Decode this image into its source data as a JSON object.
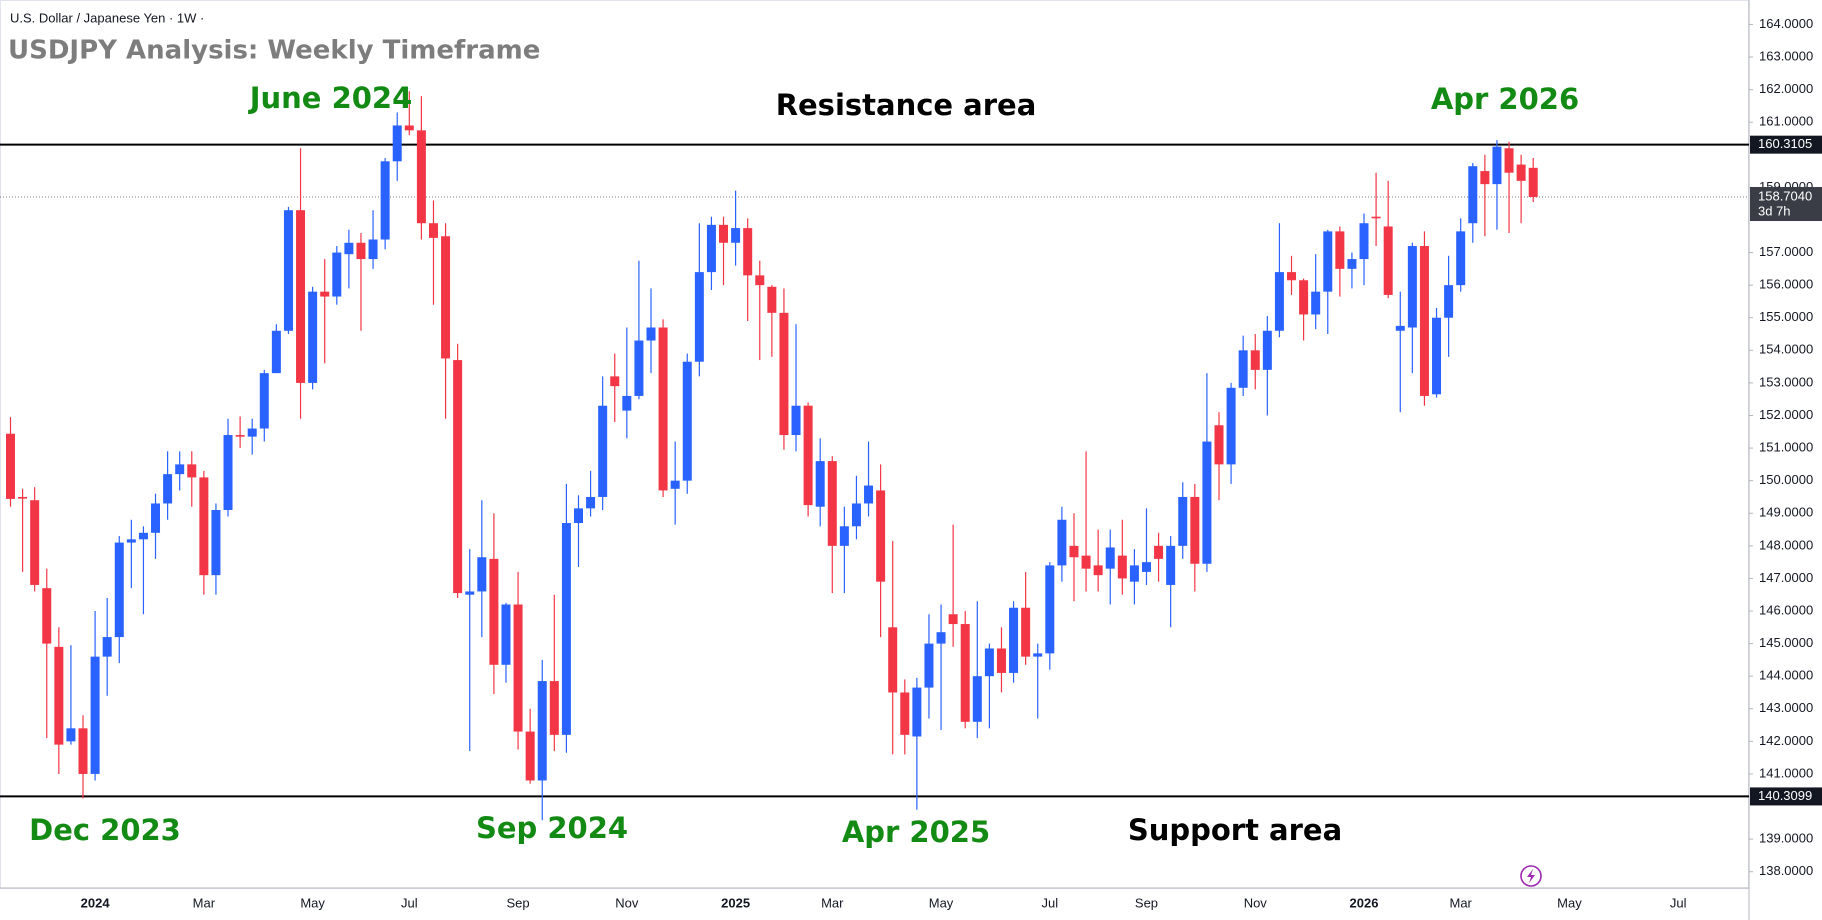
{
  "chart_data": {
    "type": "candlestick",
    "symbol": "U.S. Dollar / Japanese Yen · 1W ·",
    "title": "USDJPY Analysis: Weekly Timeframe",
    "up_color": "#2962ff",
    "down_color": "#f23645",
    "categories": [
      null,
      null,
      null,
      null,
      null,
      null,
      null,
      "2024",
      null,
      null,
      null,
      null,
      null,
      null,
      null,
      null,
      "Mar",
      null,
      null,
      null,
      null,
      null,
      null,
      null,
      null,
      "May",
      null,
      null,
      null,
      null,
      null,
      null,
      null,
      "Jul",
      null,
      null,
      null,
      null,
      null,
      null,
      null,
      null,
      "Sep",
      null,
      null,
      null,
      null,
      null,
      null,
      null,
      null,
      "Nov",
      null,
      null,
      null,
      null,
      null,
      null,
      null,
      null,
      "2025",
      null,
      null,
      null,
      null,
      null,
      null,
      null,
      "Mar",
      null,
      null,
      null,
      null,
      null,
      null,
      null,
      null,
      "May",
      null,
      null,
      null,
      null,
      null,
      null,
      null,
      null,
      "Jul",
      null,
      null,
      null,
      null,
      null,
      null,
      null,
      "Sep",
      null,
      null,
      null,
      null,
      null,
      null,
      null,
      null,
      "Nov",
      null,
      null,
      null,
      null,
      null,
      null,
      null,
      null,
      "2026",
      null,
      null,
      null,
      null,
      null,
      null,
      null,
      "Mar",
      null,
      null,
      null,
      null,
      null,
      null,
      null,
      null,
      "May",
      null,
      null,
      null,
      null,
      null,
      null,
      null,
      null,
      "Jul",
      null,
      null,
      null,
      null,
      null
    ],
    "open": [
      151.44,
      149.5,
      149.4,
      146.7,
      144.9,
      142.0,
      142.4,
      141.0,
      144.6,
      145.2,
      148.1,
      148.2,
      148.4,
      149.3,
      150.2,
      150.5,
      150.1,
      147.1,
      149.1,
      151.4,
      151.35,
      151.6,
      153.3,
      154.6,
      158.3,
      153.0,
      155.8,
      155.65,
      156.95,
      157.3,
      156.8,
      157.4,
      159.8,
      160.9,
      160.75,
      157.9,
      157.5,
      153.7,
      146.5,
      146.6,
      147.6,
      144.35,
      146.2,
      142.3,
      140.8,
      143.85,
      142.2,
      148.7,
      149.15,
      149.5,
      153.2,
      152.15,
      152.6,
      154.3,
      154.7,
      149.75,
      150.0,
      153.65,
      156.4,
      157.85,
      157.3,
      157.75,
      156.3,
      155.95,
      155.15,
      151.4,
      152.3,
      149.2,
      150.6,
      148.0,
      148.6,
      149.3,
      149.7,
      145.5,
      143.5,
      142.15,
      143.65,
      145.0,
      145.9,
      145.6,
      142.6,
      144.0,
      144.85,
      144.1,
      146.1,
      144.6,
      144.7,
      147.4,
      148.0,
      147.7,
      147.4,
      147.3,
      147.7,
      146.9,
      147.2,
      148.0,
      146.8,
      148.0,
      149.5,
      147.45,
      151.7,
      150.5,
      152.85,
      154.0,
      153.4,
      154.6,
      156.4,
      156.15,
      155.1,
      155.8,
      157.65,
      156.5,
      156.8,
      158.1,
      157.8,
      154.6,
      154.7,
      157.2,
      152.65,
      155.0,
      156.0,
      157.9,
      159.5,
      159.1,
      160.2,
      159.7,
      159.6,
      null,
      null,
      null,
      null,
      null,
      null,
      null,
      null,
      null,
      null,
      null,
      null,
      null,
      null,
      null,
      null,
      null
    ],
    "high": [
      151.95,
      149.75,
      149.8,
      147.3,
      145.5,
      144.95,
      142.8,
      146.0,
      146.4,
      148.3,
      148.8,
      148.6,
      149.6,
      150.9,
      150.9,
      150.9,
      150.3,
      149.3,
      151.9,
      151.97,
      151.9,
      153.4,
      154.8,
      158.4,
      160.2,
      155.95,
      156.8,
      157.2,
      157.7,
      157.6,
      158.3,
      159.9,
      161.3,
      161.95,
      161.8,
      158.6,
      157.9,
      154.2,
      147.9,
      149.4,
      149.0,
      146.25,
      147.2,
      143.0,
      144.5,
      146.5,
      149.9,
      149.55,
      150.3,
      153.2,
      153.9,
      154.7,
      156.75,
      155.9,
      154.95,
      151.2,
      153.9,
      157.9,
      158.1,
      158.1,
      158.9,
      158.05,
      156.75,
      156.0,
      155.9,
      154.8,
      152.4,
      151.3,
      150.75,
      149.2,
      150.15,
      151.2,
      150.5,
      148.15,
      143.9,
      143.95,
      145.9,
      146.2,
      148.65,
      146.0,
      146.3,
      145.0,
      145.5,
      146.3,
      147.2,
      145.0,
      147.5,
      149.2,
      149.0,
      150.9,
      148.5,
      148.5,
      148.8,
      147.9,
      149.15,
      148.4,
      148.3,
      149.95,
      149.9,
      153.3,
      152.1,
      153.0,
      154.45,
      154.5,
      155.05,
      157.9,
      156.9,
      156.2,
      156.95,
      157.7,
      157.8,
      157.0,
      158.2,
      159.45,
      159.2,
      155.8,
      157.3,
      157.65,
      155.3,
      156.9,
      158.05,
      159.75,
      160.0,
      160.45,
      160.4,
      160.0,
      159.9,
      null,
      null,
      null,
      null,
      null,
      null,
      null,
      null,
      null,
      null,
      null,
      null,
      null,
      null,
      null,
      null,
      null
    ],
    "low": [
      149.2,
      147.2,
      146.6,
      142.1,
      141.0,
      141.9,
      140.25,
      140.8,
      143.4,
      144.4,
      146.7,
      145.9,
      147.6,
      148.8,
      149.7,
      149.2,
      146.5,
      146.5,
      148.9,
      151.0,
      150.8,
      151.2,
      153.3,
      154.5,
      151.9,
      152.8,
      153.6,
      155.4,
      155.9,
      154.6,
      156.5,
      157.1,
      159.2,
      160.6,
      157.4,
      155.4,
      151.9,
      146.4,
      141.7,
      145.2,
      143.45,
      143.8,
      141.75,
      140.7,
      139.58,
      141.7,
      141.65,
      147.35,
      148.9,
      149.1,
      151.8,
      151.3,
      152.5,
      153.3,
      149.5,
      148.65,
      149.6,
      153.2,
      155.85,
      156.0,
      156.6,
      154.9,
      153.7,
      153.8,
      150.95,
      150.9,
      148.9,
      148.6,
      146.55,
      146.55,
      148.2,
      148.9,
      145.2,
      141.6,
      141.6,
      139.9,
      142.7,
      142.35,
      144.9,
      142.4,
      142.1,
      142.4,
      143.5,
      143.8,
      144.35,
      142.7,
      144.2,
      146.9,
      146.3,
      146.6,
      146.6,
      146.2,
      146.5,
      146.2,
      146.8,
      146.9,
      145.5,
      147.6,
      146.6,
      147.2,
      149.4,
      149.9,
      152.6,
      152.8,
      152.0,
      154.4,
      155.7,
      154.3,
      154.65,
      154.5,
      155.65,
      155.9,
      156.0,
      157.2,
      155.6,
      152.1,
      153.3,
      152.3,
      152.55,
      153.8,
      155.8,
      157.3,
      157.5,
      157.7,
      157.6,
      157.9,
      158.55,
      null,
      null,
      null,
      null,
      null,
      null,
      null,
      null,
      null,
      null,
      null,
      null,
      null,
      null,
      null,
      null,
      null
    ],
    "close": [
      149.44,
      149.45,
      146.8,
      145.0,
      141.9,
      142.4,
      141.0,
      144.6,
      145.2,
      148.1,
      148.2,
      148.4,
      149.3,
      150.2,
      150.5,
      150.1,
      147.1,
      149.1,
      151.4,
      151.35,
      151.6,
      153.3,
      154.6,
      158.3,
      153.0,
      155.8,
      155.65,
      157.0,
      157.3,
      156.8,
      157.4,
      159.8,
      160.9,
      160.75,
      157.9,
      157.45,
      153.75,
      146.55,
      146.6,
      147.65,
      144.35,
      146.2,
      142.3,
      140.8,
      143.85,
      142.2,
      148.7,
      149.15,
      149.5,
      152.3,
      152.9,
      152.6,
      154.3,
      154.7,
      149.7,
      150.0,
      153.65,
      156.4,
      157.85,
      157.3,
      157.75,
      156.3,
      156.0,
      155.15,
      151.4,
      152.3,
      149.25,
      150.6,
      148.0,
      148.6,
      149.3,
      149.85,
      146.9,
      143.5,
      142.2,
      143.65,
      145.0,
      145.35,
      145.6,
      142.6,
      144.0,
      144.85,
      144.1,
      146.1,
      144.6,
      144.7,
      147.4,
      148.8,
      147.65,
      147.3,
      147.1,
      147.95,
      147.0,
      147.4,
      147.5,
      147.6,
      148.0,
      149.5,
      147.45,
      151.2,
      150.5,
      152.85,
      154.0,
      153.4,
      154.6,
      156.4,
      156.15,
      155.1,
      155.8,
      157.65,
      156.5,
      156.8,
      157.9,
      158.05,
      155.7,
      154.75,
      157.2,
      152.6,
      155.0,
      156.0,
      157.65,
      159.65,
      159.1,
      160.25,
      159.45,
      159.2,
      158.704,
      null,
      null,
      null,
      null,
      null,
      null,
      null,
      null,
      null,
      null,
      null,
      null,
      null,
      null,
      null,
      null,
      null
    ],
    "ylim": [
      137.5,
      164.75
    ],
    "yticks": [
      {
        "value": 164,
        "label": "164.0000"
      },
      {
        "value": 163,
        "label": "163.0000"
      },
      {
        "value": 162,
        "label": "162.0000"
      },
      {
        "value": 161,
        "label": "161.0000"
      },
      {
        "value": 159,
        "label": "159.0000"
      },
      {
        "value": 157,
        "label": "157.0000"
      },
      {
        "value": 156,
        "label": "156.0000"
      },
      {
        "value": 155,
        "label": "155.0000"
      },
      {
        "value": 154,
        "label": "154.0000"
      },
      {
        "value": 153,
        "label": "153.0000"
      },
      {
        "value": 152,
        "label": "152.0000"
      },
      {
        "value": 151,
        "label": "151.0000"
      },
      {
        "value": 150,
        "label": "150.0000"
      },
      {
        "value": 149,
        "label": "149.0000"
      },
      {
        "value": 148,
        "label": "148.0000"
      },
      {
        "value": 147,
        "label": "147.0000"
      },
      {
        "value": 146,
        "label": "146.0000"
      },
      {
        "value": 145,
        "label": "145.0000"
      },
      {
        "value": 144,
        "label": "144.0000"
      },
      {
        "value": 143,
        "label": "143.0000"
      },
      {
        "value": 142,
        "label": "142.0000"
      },
      {
        "value": 141,
        "label": "141.0000"
      },
      {
        "value": 139,
        "label": "139.0000"
      },
      {
        "value": 138,
        "label": "138.0000"
      }
    ],
    "hlines": [
      160.3105,
      140.3099
    ],
    "last_price": {
      "value": 158.704,
      "label": "158.7040"
    },
    "countdown": "3d 7h",
    "annotations": [
      {
        "text": "June 2024",
        "color": "#138a13"
      },
      {
        "text": "Resistance area",
        "color": "#000000"
      },
      {
        "text": "Apr 2026",
        "color": "#138a13"
      },
      {
        "text": "Dec 2023",
        "color": "#138a13"
      },
      {
        "text": "Sep 2024",
        "color": "#138a13"
      },
      {
        "text": "Apr 2025",
        "color": "#138a13"
      },
      {
        "text": "Support area",
        "color": "#000000"
      }
    ]
  }
}
